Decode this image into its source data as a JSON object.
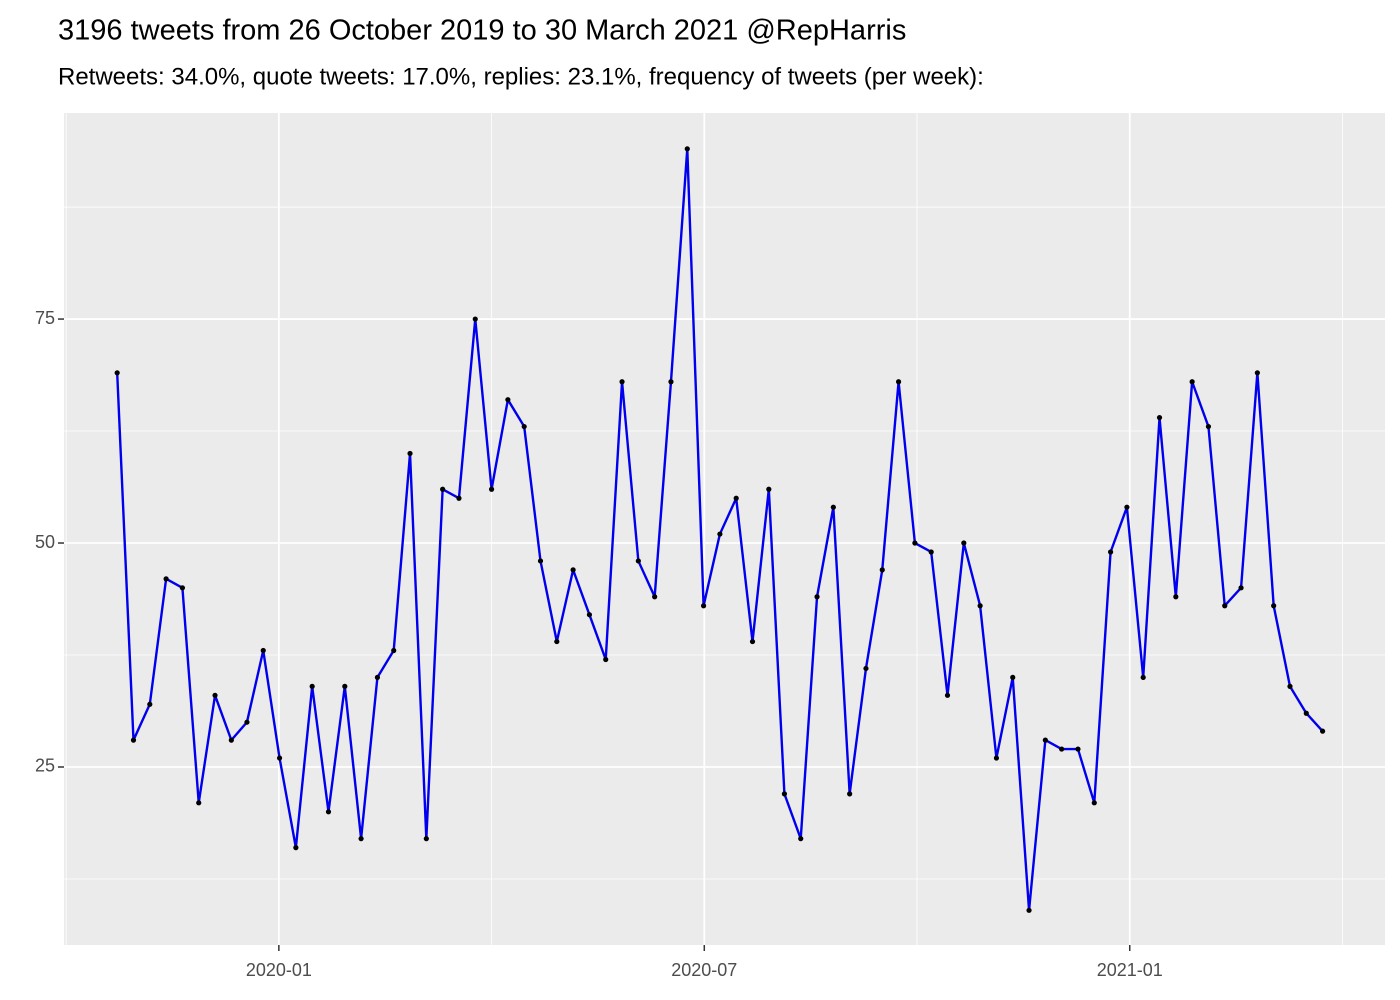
{
  "chart_data": {
    "type": "line",
    "title": "3196 tweets from 26 October 2019 to 30 March 2021 @RepHarris",
    "subtitle": "Retweets: 34.0%, quote tweets: 17.0%, replies: 23.1%, frequency of tweets (per week):",
    "x": [
      -2.28,
      -2.05,
      -1.82,
      -1.59,
      -1.36,
      -1.13,
      -0.9,
      -0.67,
      -0.45,
      -0.22,
      0.01,
      0.24,
      0.47,
      0.7,
      0.93,
      1.16,
      1.39,
      1.62,
      1.85,
      2.08,
      2.31,
      2.54,
      2.77,
      3.0,
      3.23,
      3.46,
      3.69,
      3.92,
      4.15,
      4.38,
      4.61,
      4.84,
      5.07,
      5.3,
      5.53,
      5.76,
      5.99,
      6.22,
      6.45,
      6.68,
      6.91,
      7.13,
      7.36,
      7.59,
      7.82,
      8.05,
      8.28,
      8.51,
      8.74,
      8.97,
      9.2,
      9.43,
      9.66,
      9.89,
      10.12,
      10.35,
      10.58,
      10.81,
      11.04,
      11.27,
      11.5,
      11.73,
      11.96,
      12.19,
      12.42,
      12.65,
      12.88,
      13.11,
      13.34,
      13.57,
      13.8,
      14.03,
      14.26,
      14.49,
      14.72
    ],
    "values": [
      69,
      28,
      32,
      46,
      45,
      21,
      33,
      28,
      30,
      38,
      26,
      16,
      34,
      20,
      34,
      17,
      35,
      38,
      60,
      17,
      56,
      55,
      75,
      56,
      66,
      63,
      48,
      39,
      47,
      42,
      37,
      68,
      48,
      44,
      68,
      94,
      43,
      51,
      55,
      39,
      56,
      22,
      17,
      44,
      54,
      22,
      36,
      47,
      68,
      50,
      49,
      33,
      50,
      43,
      26,
      35,
      9,
      28,
      27,
      27,
      21,
      49,
      54,
      35,
      64,
      44,
      68,
      63,
      43,
      45,
      69,
      43,
      34,
      31,
      29
    ],
    "color": "#0000ee",
    "point_color": "#000000",
    "xlim": [
      -3.03,
      15.6
    ],
    "xticks": [
      {
        "value": 0,
        "label": "2020-01"
      },
      {
        "value": 6,
        "label": "2020-07"
      },
      {
        "value": 12,
        "label": "2021-01"
      }
    ],
    "ylim": [
      5.13,
      98.0
    ],
    "yticks": [
      25,
      50,
      75
    ],
    "grid": true
  }
}
